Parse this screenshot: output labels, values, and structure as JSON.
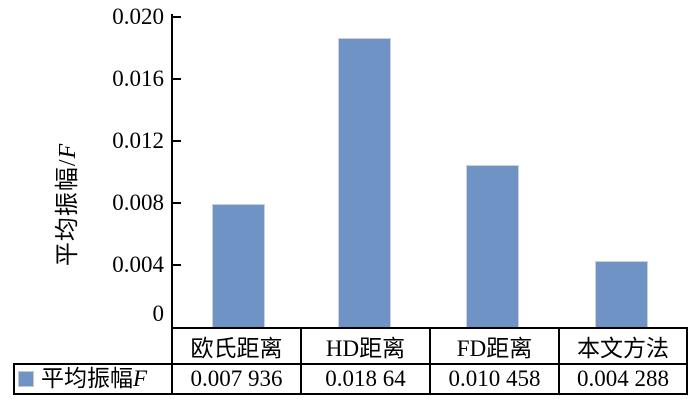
{
  "figure": {
    "background": "#ffffff"
  },
  "chart_data": {
    "type": "bar",
    "title": "",
    "categories": [
      "欧氏距离",
      "HD距离",
      "FD距离",
      "本文方法"
    ],
    "series": [
      {
        "name": "平均振幅F",
        "values": [
          0.007936,
          0.01864,
          0.010458,
          0.004288
        ]
      }
    ],
    "value_labels": [
      "0.007 936",
      "0.018 64",
      "0.010 458",
      "0.004 288"
    ],
    "xlabel": "",
    "ylabel": "平均振幅/F",
    "ylim": [
      0,
      0.02
    ],
    "yticks": [
      "0.020",
      "0.016",
      "0.012",
      "0.008",
      "0.004",
      "0"
    ],
    "grid": false,
    "legend_position": "bottom-table-left",
    "bar_color": "#6e93c4"
  },
  "y_axis": {
    "label_prefix": "平均振幅/",
    "label_italic": "F"
  },
  "legend": {
    "swatch_color": "#6e93c4",
    "label_prefix": "平均振幅",
    "label_italic": "F"
  }
}
